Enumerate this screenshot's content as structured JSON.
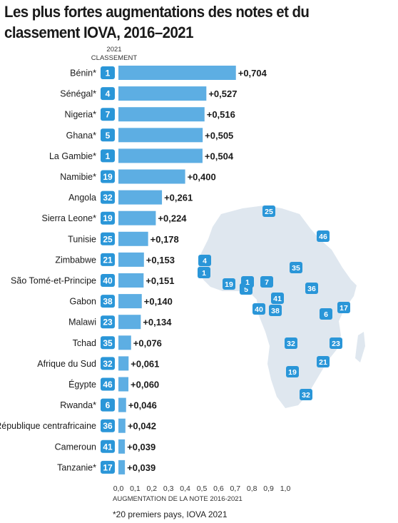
{
  "title": "Les plus fortes augmentations des notes et du classement IOVA, 2016–2021",
  "rank_header": {
    "year": "2021",
    "label": "CLASSEMENT"
  },
  "footnote": "*20 premiers pays, IOVA 2021",
  "colors": {
    "bar": "#5daee3",
    "badge": "#2a96d8",
    "map_fill": "#dfe7ef",
    "text": "#1a1a1a"
  },
  "chart_data": {
    "type": "bar",
    "orientation": "horizontal",
    "categories": [
      "Bénin*",
      "Sénégal*",
      "Nigeria*",
      "Ghana*",
      "La Gambie*",
      "Namibie*",
      "Angola",
      "Sierra Leone*",
      "Tunisie",
      "Zimbabwe",
      "São Tomé-et-Principe",
      "Gabon",
      "Malawi",
      "Tchad",
      "Afrique du Sud",
      "Égypte",
      "Rwanda*",
      "République centrafricaine",
      "Cameroun",
      "Tanzanie*"
    ],
    "ranks": [
      "1",
      "4",
      "7",
      "5",
      "1",
      "19",
      "32",
      "19",
      "25",
      "21",
      "40",
      "38",
      "23",
      "35",
      "32",
      "46",
      "6",
      "36",
      "41",
      "17"
    ],
    "values": [
      0.704,
      0.527,
      0.516,
      0.505,
      0.504,
      0.4,
      0.261,
      0.224,
      0.178,
      0.153,
      0.151,
      0.14,
      0.134,
      0.076,
      0.061,
      0.06,
      0.046,
      0.042,
      0.039,
      0.039
    ],
    "value_labels": [
      "+0,704",
      "+0,527",
      "+0,516",
      "+0,505",
      "+0,504",
      "+0,400",
      "+0,261",
      "+0,224",
      "+0,178",
      "+0,153",
      "+0,151",
      "+0,140",
      "+0,134",
      "+0,076",
      "+0,061",
      "+0,060",
      "+0,046",
      "+0,042",
      "+0,039",
      "+0,039"
    ],
    "xlim": [
      0,
      1.0
    ],
    "xticks": [
      "0,0",
      "0,1",
      "0,2",
      "0,3",
      "0,4",
      "0,5",
      "0,6",
      "0,7",
      "0,8",
      "0,9",
      "1,0"
    ],
    "xlabel": "AUGMENTATION DE LA NOTE 2016-2021",
    "ylabel": "",
    "grid": false,
    "legend": "none"
  },
  "map": {
    "description_free": true,
    "badges": [
      "25",
      "46",
      "4",
      "1",
      "35",
      "19",
      "5",
      "1",
      "7",
      "41",
      "36",
      "40",
      "38",
      "6",
      "17",
      "32",
      "23",
      "21",
      "19",
      "32"
    ]
  }
}
